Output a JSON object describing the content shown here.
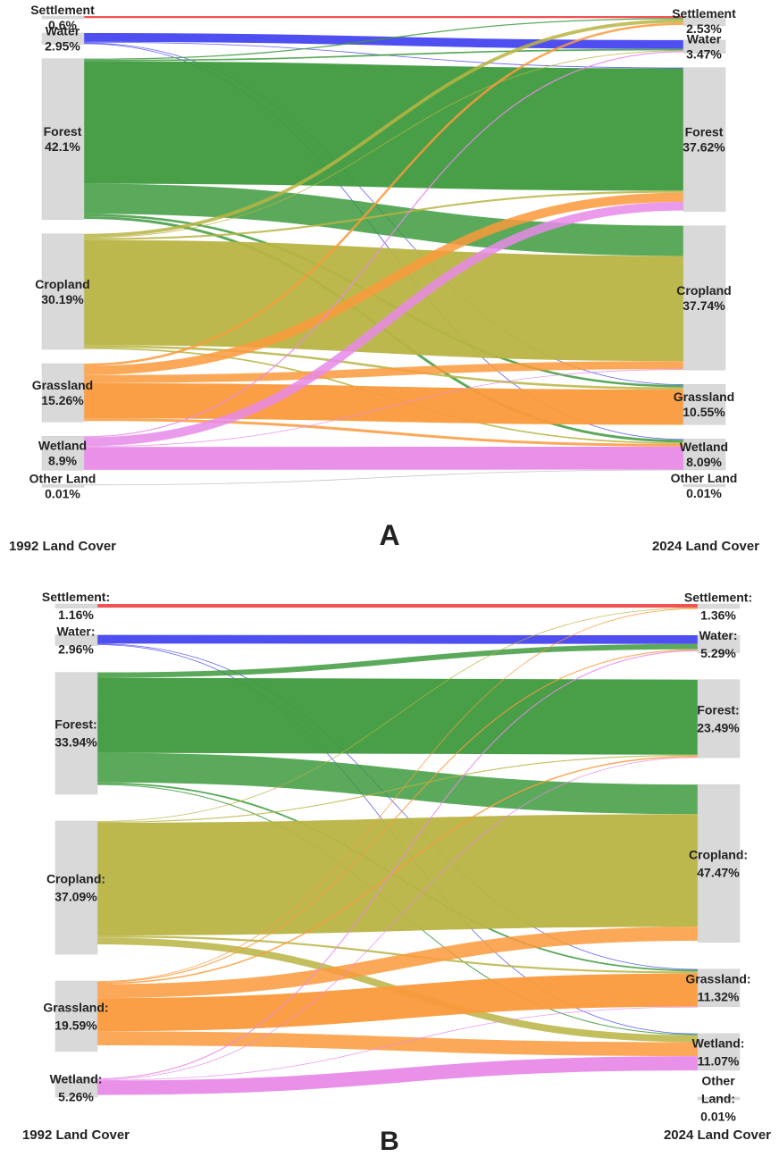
{
  "colors": {
    "Settlement": "#f04a4a",
    "Water": "#4646f0",
    "Forest": "#3e9a3e",
    "Cropland": "#b8b443",
    "Grassland": "#fa9a3c",
    "Wetland": "#e88ae8",
    "Other Land": "#bbbbbb",
    "node": "#d9d9d9"
  },
  "chart_data": [
    {
      "type": "sankey",
      "panel_label": "A",
      "left_title": "1992 Land Cover",
      "right_title": "2024 Land Cover",
      "left_nodes": [
        {
          "name": "Settlement",
          "value": 0.6,
          "label": "0.6%"
        },
        {
          "name": "Water",
          "value": 2.95,
          "label": "2.95%"
        },
        {
          "name": "Forest",
          "value": 42.1,
          "label": "42.1%"
        },
        {
          "name": "Cropland",
          "value": 30.19,
          "label": "30.19%"
        },
        {
          "name": "Grassland",
          "value": 15.26,
          "label": "15.26%"
        },
        {
          "name": "Wetland",
          "value": 8.9,
          "label": "8.9%"
        },
        {
          "name": "Other Land",
          "value": 0.01,
          "label": "0.01%"
        }
      ],
      "right_nodes": [
        {
          "name": "Settlement",
          "value": 2.53,
          "label": "2.53%"
        },
        {
          "name": "Water",
          "value": 3.47,
          "label": "3.47%"
        },
        {
          "name": "Forest",
          "value": 37.62,
          "label": "37.62%"
        },
        {
          "name": "Cropland",
          "value": 37.74,
          "label": "37.74%"
        },
        {
          "name": "Grassland",
          "value": 10.55,
          "label": "10.55%"
        },
        {
          "name": "Wetland",
          "value": 8.09,
          "label": "8.09%"
        },
        {
          "name": "Other Land",
          "value": 0.01,
          "label": "0.01%"
        }
      ],
      "flows": [
        {
          "source": "Settlement",
          "target": "Settlement",
          "value": 0.52
        },
        {
          "source": "Water",
          "target": "Water",
          "value": 2.3
        },
        {
          "source": "Water",
          "target": "Forest",
          "value": 0.15
        },
        {
          "source": "Water",
          "target": "Grassland",
          "value": 0.1
        },
        {
          "source": "Water",
          "target": "Wetland",
          "value": 0.2
        },
        {
          "source": "Forest",
          "target": "Settlement",
          "value": 0.3
        },
        {
          "source": "Forest",
          "target": "Water",
          "value": 0.4
        },
        {
          "source": "Forest",
          "target": "Forest",
          "value": 32.0
        },
        {
          "source": "Forest",
          "target": "Cropland",
          "value": 7.9
        },
        {
          "source": "Forest",
          "target": "Grassland",
          "value": 0.6
        },
        {
          "source": "Forest",
          "target": "Wetland",
          "value": 0.7
        },
        {
          "source": "Cropland",
          "target": "Settlement",
          "value": 0.9
        },
        {
          "source": "Cropland",
          "target": "Water",
          "value": 0.2
        },
        {
          "source": "Cropland",
          "target": "Forest",
          "value": 0.5
        },
        {
          "source": "Cropland",
          "target": "Cropland",
          "value": 27.5
        },
        {
          "source": "Cropland",
          "target": "Grassland",
          "value": 0.6
        },
        {
          "source": "Cropland",
          "target": "Wetland",
          "value": 0.4
        },
        {
          "source": "Grassland",
          "target": "Settlement",
          "value": 0.6
        },
        {
          "source": "Grassland",
          "target": "Forest",
          "value": 2.4
        },
        {
          "source": "Grassland",
          "target": "Cropland",
          "value": 2.1
        },
        {
          "source": "Grassland",
          "target": "Grassland",
          "value": 9.2
        },
        {
          "source": "Grassland",
          "target": "Wetland",
          "value": 0.7
        },
        {
          "source": "Wetland",
          "target": "Water",
          "value": 0.3
        },
        {
          "source": "Wetland",
          "target": "Forest",
          "value": 2.3
        },
        {
          "source": "Wetland",
          "target": "Cropland",
          "value": 0.1
        },
        {
          "source": "Wetland",
          "target": "Wetland",
          "value": 6.0
        },
        {
          "source": "Other Land",
          "target": "Wetland",
          "value": 0.01
        }
      ]
    },
    {
      "type": "sankey",
      "panel_label": "B",
      "left_title": "1992 Land Cover",
      "right_title": "2024 Land Cover",
      "left_nodes": [
        {
          "name": "Settlement",
          "value": 1.16,
          "label": "1.16%"
        },
        {
          "name": "Water",
          "value": 2.96,
          "label": "2.96%"
        },
        {
          "name": "Forest",
          "value": 33.94,
          "label": "33.94%"
        },
        {
          "name": "Cropland",
          "value": 37.09,
          "label": "37.09%"
        },
        {
          "name": "Grassland",
          "value": 19.59,
          "label": "19.59%"
        },
        {
          "name": "Wetland",
          "value": 5.26,
          "label": "5.26%"
        }
      ],
      "right_nodes": [
        {
          "name": "Settlement",
          "value": 1.36,
          "label": "1.36%"
        },
        {
          "name": "Water",
          "value": 5.29,
          "label": "5.29%"
        },
        {
          "name": "Forest",
          "value": 23.49,
          "label": "23.49%"
        },
        {
          "name": "Cropland",
          "value": 47.47,
          "label": "47.47%"
        },
        {
          "name": "Grassland",
          "value": 11.32,
          "label": "11.32%"
        },
        {
          "name": "Wetland",
          "value": 11.07,
          "label": "11.07%"
        },
        {
          "name": "Other Land",
          "value": 0.01,
          "label": "0.01%"
        }
      ],
      "flows": [
        {
          "source": "Settlement",
          "target": "Settlement",
          "value": 1.1
        },
        {
          "source": "Water",
          "target": "Water",
          "value": 2.6
        },
        {
          "source": "Water",
          "target": "Grassland",
          "value": 0.15
        },
        {
          "source": "Water",
          "target": "Wetland",
          "value": 0.2
        },
        {
          "source": "Forest",
          "target": "Water",
          "value": 1.6
        },
        {
          "source": "Forest",
          "target": "Forest",
          "value": 22.6
        },
        {
          "source": "Forest",
          "target": "Cropland",
          "value": 8.9
        },
        {
          "source": "Forest",
          "target": "Grassland",
          "value": 0.5
        },
        {
          "source": "Forest",
          "target": "Wetland",
          "value": 0.3
        },
        {
          "source": "Cropland",
          "target": "Settlement",
          "value": 0.1
        },
        {
          "source": "Cropland",
          "target": "Forest",
          "value": 0.3
        },
        {
          "source": "Cropland",
          "target": "Cropland",
          "value": 33.9
        },
        {
          "source": "Cropland",
          "target": "Grassland",
          "value": 0.6
        },
        {
          "source": "Cropland",
          "target": "Wetland",
          "value": 2.1
        },
        {
          "source": "Grassland",
          "target": "Settlement",
          "value": 0.15
        },
        {
          "source": "Grassland",
          "target": "Water",
          "value": 0.3
        },
        {
          "source": "Grassland",
          "target": "Forest",
          "value": 0.4
        },
        {
          "source": "Grassland",
          "target": "Cropland",
          "value": 4.2
        },
        {
          "source": "Grassland",
          "target": "Grassland",
          "value": 10.0
        },
        {
          "source": "Grassland",
          "target": "Wetland",
          "value": 4.2
        },
        {
          "source": "Wetland",
          "target": "Water",
          "value": 0.3
        },
        {
          "source": "Wetland",
          "target": "Forest",
          "value": 0.2
        },
        {
          "source": "Wetland",
          "target": "Grassland",
          "value": 0.1
        },
        {
          "source": "Wetland",
          "target": "Wetland",
          "value": 4.3
        }
      ]
    }
  ]
}
